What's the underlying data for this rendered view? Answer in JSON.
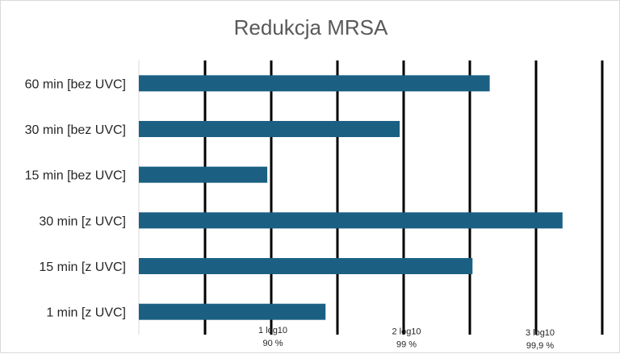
{
  "chart_data": {
    "type": "bar",
    "orientation": "horizontal",
    "title": "Redukcja MRSA",
    "categories": [
      "60 min  [bez UVC]",
      "30 min  [bez UVC]",
      "15 min  [bez UVC]",
      "30 min  [z UVC]",
      "15 min  [z UVC]",
      "1 min  [z UVC]"
    ],
    "values": [
      2.65,
      1.97,
      0.97,
      3.2,
      2.52,
      1.41
    ],
    "xlim": [
      0,
      3.5
    ],
    "gridlines": [
      0.5,
      1,
      1.5,
      2,
      2.5,
      3,
      3.5
    ],
    "ticks": [
      {
        "value": 1,
        "label": "1 log10",
        "sublabel": "90 %"
      },
      {
        "value": 2,
        "label": "2 log10",
        "sublabel": "99 %"
      },
      {
        "value": 3,
        "label": "3 log10",
        "sublabel": "99,9 %"
      }
    ],
    "grid": true,
    "legend": "none",
    "colors": {
      "bar": "#1b6083",
      "grid": "#000000",
      "axis": "#d9d9d9"
    }
  }
}
